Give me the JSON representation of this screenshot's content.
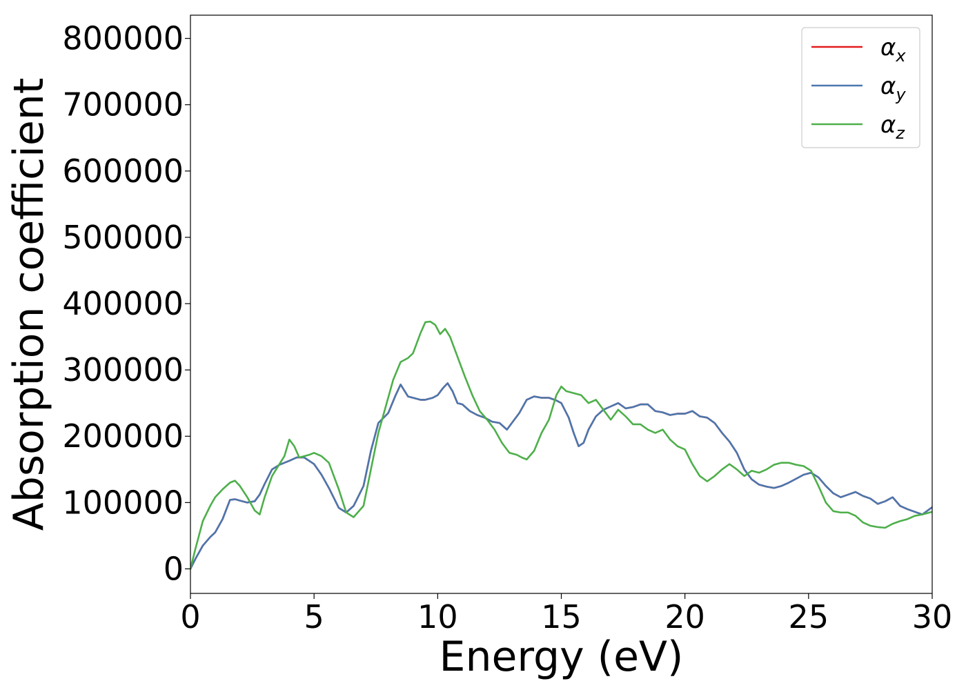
{
  "chart_data": {
    "type": "line",
    "title": "",
    "xlabel": "Energy (eV)",
    "ylabel": "Absorption coefficient",
    "xlim": [
      0,
      30
    ],
    "ylim": [
      -37000,
      835000
    ],
    "xticks": [
      0,
      5,
      10,
      15,
      20,
      25,
      30
    ],
    "yticks": [
      0,
      100000,
      200000,
      300000,
      400000,
      500000,
      600000,
      700000,
      800000
    ],
    "grid": false,
    "legend_position": "top-right",
    "series": [
      {
        "name": "α",
        "subscript": "x",
        "color": "#e41a1c",
        "x": [
          0,
          0.2,
          0.5,
          0.8,
          1.0,
          1.3,
          1.6,
          1.8,
          2.0,
          2.3,
          2.6,
          2.8,
          3.0,
          3.3,
          3.6,
          4.0,
          4.3,
          4.6,
          5.0,
          5.3,
          5.6,
          6.0,
          6.3,
          6.6,
          7.0,
          7.3,
          7.6,
          8.0,
          8.3,
          8.5,
          8.8,
          9.0,
          9.3,
          9.5,
          9.8,
          10.0,
          10.2,
          10.4,
          10.6,
          10.8,
          11.0,
          11.3,
          11.6,
          11.9,
          12.2,
          12.5,
          12.8,
          13.0,
          13.3,
          13.6,
          13.9,
          14.2,
          14.5,
          14.8,
          15.0,
          15.3,
          15.5,
          15.7,
          15.9,
          16.1,
          16.4,
          16.7,
          17.0,
          17.3,
          17.6,
          17.9,
          18.2,
          18.5,
          18.8,
          19.1,
          19.4,
          19.7,
          20.0,
          20.3,
          20.6,
          20.9,
          21.2,
          21.5,
          21.8,
          22.1,
          22.4,
          22.7,
          23.0,
          23.3,
          23.6,
          23.9,
          24.2,
          24.5,
          24.8,
          25.1,
          25.4,
          25.7,
          26.0,
          26.3,
          26.6,
          26.9,
          27.2,
          27.5,
          27.8,
          28.1,
          28.4,
          28.7,
          29.0,
          29.3,
          29.6,
          30.0
        ],
        "values": [
          0,
          15000,
          35000,
          48000,
          55000,
          75000,
          104000,
          105000,
          103000,
          100000,
          102000,
          112000,
          128000,
          150000,
          157000,
          163000,
          168000,
          168000,
          158000,
          142000,
          122000,
          92000,
          85000,
          95000,
          125000,
          178000,
          220000,
          235000,
          262000,
          278000,
          260000,
          258000,
          255000,
          255000,
          258000,
          262000,
          272000,
          280000,
          268000,
          250000,
          248000,
          238000,
          232000,
          228000,
          222000,
          220000,
          210000,
          220000,
          235000,
          255000,
          260000,
          258000,
          258000,
          254000,
          250000,
          228000,
          205000,
          185000,
          190000,
          210000,
          230000,
          240000,
          245000,
          250000,
          242000,
          244000,
          248000,
          248000,
          238000,
          236000,
          232000,
          234000,
          234000,
          238000,
          230000,
          228000,
          220000,
          205000,
          192000,
          175000,
          150000,
          135000,
          127000,
          124000,
          122000,
          125000,
          130000,
          136000,
          142000,
          145000,
          138000,
          125000,
          114000,
          108000,
          112000,
          116000,
          110000,
          106000,
          98000,
          102000,
          108000,
          95000,
          90000,
          86000,
          82000,
          93000
        ]
      },
      {
        "name": "α",
        "subscript": "y",
        "color": "#4a77ae",
        "x": [
          0,
          0.2,
          0.5,
          0.8,
          1.0,
          1.3,
          1.6,
          1.8,
          2.0,
          2.3,
          2.6,
          2.8,
          3.0,
          3.3,
          3.6,
          4.0,
          4.3,
          4.6,
          5.0,
          5.3,
          5.6,
          6.0,
          6.3,
          6.6,
          7.0,
          7.3,
          7.6,
          8.0,
          8.3,
          8.5,
          8.8,
          9.0,
          9.3,
          9.5,
          9.8,
          10.0,
          10.2,
          10.4,
          10.6,
          10.8,
          11.0,
          11.3,
          11.6,
          11.9,
          12.2,
          12.5,
          12.8,
          13.0,
          13.3,
          13.6,
          13.9,
          14.2,
          14.5,
          14.8,
          15.0,
          15.3,
          15.5,
          15.7,
          15.9,
          16.1,
          16.4,
          16.7,
          17.0,
          17.3,
          17.6,
          17.9,
          18.2,
          18.5,
          18.8,
          19.1,
          19.4,
          19.7,
          20.0,
          20.3,
          20.6,
          20.9,
          21.2,
          21.5,
          21.8,
          22.1,
          22.4,
          22.7,
          23.0,
          23.3,
          23.6,
          23.9,
          24.2,
          24.5,
          24.8,
          25.1,
          25.4,
          25.7,
          26.0,
          26.3,
          26.6,
          26.9,
          27.2,
          27.5,
          27.8,
          28.1,
          28.4,
          28.7,
          29.0,
          29.3,
          29.6,
          30.0
        ],
        "values": [
          0,
          15000,
          35000,
          48000,
          55000,
          75000,
          104000,
          105000,
          103000,
          100000,
          102000,
          112000,
          128000,
          150000,
          157000,
          163000,
          168000,
          168000,
          158000,
          142000,
          122000,
          92000,
          85000,
          95000,
          125000,
          178000,
          220000,
          235000,
          262000,
          278000,
          260000,
          258000,
          255000,
          255000,
          258000,
          262000,
          272000,
          280000,
          268000,
          250000,
          248000,
          238000,
          232000,
          228000,
          222000,
          220000,
          210000,
          220000,
          235000,
          255000,
          260000,
          258000,
          258000,
          254000,
          250000,
          228000,
          205000,
          185000,
          190000,
          210000,
          230000,
          240000,
          245000,
          250000,
          242000,
          244000,
          248000,
          248000,
          238000,
          236000,
          232000,
          234000,
          234000,
          238000,
          230000,
          228000,
          220000,
          205000,
          192000,
          175000,
          150000,
          135000,
          127000,
          124000,
          122000,
          125000,
          130000,
          136000,
          142000,
          145000,
          138000,
          125000,
          114000,
          108000,
          112000,
          116000,
          110000,
          106000,
          98000,
          102000,
          108000,
          95000,
          90000,
          86000,
          82000,
          93000
        ]
      },
      {
        "name": "α",
        "subscript": "z",
        "color": "#4daf4a",
        "x": [
          0,
          0.2,
          0.5,
          0.8,
          1.0,
          1.3,
          1.6,
          1.8,
          2.0,
          2.3,
          2.6,
          2.8,
          3.0,
          3.3,
          3.6,
          3.8,
          4.0,
          4.2,
          4.4,
          4.6,
          4.8,
          5.0,
          5.3,
          5.6,
          6.0,
          6.3,
          6.6,
          7.0,
          7.3,
          7.6,
          7.9,
          8.2,
          8.5,
          8.8,
          9.0,
          9.3,
          9.5,
          9.7,
          9.9,
          10.1,
          10.3,
          10.5,
          10.8,
          11.1,
          11.4,
          11.7,
          12.0,
          12.3,
          12.6,
          12.9,
          13.2,
          13.4,
          13.6,
          13.9,
          14.2,
          14.5,
          14.8,
          15.0,
          15.2,
          15.5,
          15.8,
          16.1,
          16.4,
          16.7,
          17.0,
          17.3,
          17.6,
          17.9,
          18.2,
          18.5,
          18.8,
          19.1,
          19.4,
          19.7,
          20.0,
          20.3,
          20.6,
          20.9,
          21.2,
          21.5,
          21.8,
          22.1,
          22.4,
          22.7,
          23.0,
          23.3,
          23.6,
          23.9,
          24.2,
          24.5,
          24.8,
          25.1,
          25.4,
          25.7,
          26.0,
          26.3,
          26.6,
          26.9,
          27.2,
          27.5,
          27.8,
          28.1,
          28.4,
          28.7,
          29.0,
          29.3,
          29.6,
          30.0
        ],
        "values": [
          0,
          30000,
          72000,
          95000,
          108000,
          120000,
          130000,
          133000,
          125000,
          108000,
          88000,
          82000,
          108000,
          140000,
          158000,
          170000,
          195000,
          185000,
          168000,
          170000,
          172000,
          175000,
          170000,
          160000,
          120000,
          85000,
          78000,
          95000,
          150000,
          205000,
          245000,
          285000,
          312000,
          318000,
          325000,
          355000,
          372000,
          373000,
          368000,
          354000,
          362000,
          350000,
          320000,
          290000,
          262000,
          238000,
          225000,
          210000,
          190000,
          175000,
          172000,
          168000,
          165000,
          178000,
          205000,
          225000,
          262000,
          275000,
          268000,
          265000,
          262000,
          250000,
          255000,
          240000,
          225000,
          240000,
          230000,
          218000,
          218000,
          210000,
          205000,
          210000,
          195000,
          185000,
          180000,
          158000,
          140000,
          132000,
          140000,
          150000,
          158000,
          150000,
          140000,
          148000,
          145000,
          150000,
          157000,
          160000,
          160000,
          157000,
          155000,
          148000,
          125000,
          100000,
          87000,
          85000,
          85000,
          80000,
          70000,
          65000,
          63000,
          62000,
          68000,
          72000,
          75000,
          80000,
          82000,
          86000
        ]
      }
    ]
  }
}
